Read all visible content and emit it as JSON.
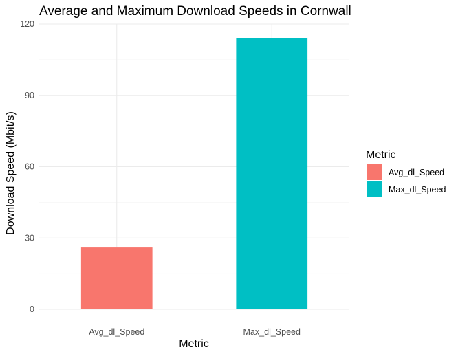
{
  "chart_data": {
    "type": "bar",
    "title": "Average and Maximum Download Speeds in Cornwall",
    "xlabel": "Metric",
    "ylabel": "Download Speed (Mbit/s)",
    "categories": [
      "Avg_dl_Speed",
      "Max_dl_Speed"
    ],
    "values": [
      26,
      114.2
    ],
    "colors": [
      "#F8766D",
      "#00BFC4"
    ],
    "ylim": [
      0,
      120
    ],
    "yticks": [
      0,
      30,
      60,
      90,
      120
    ],
    "grid": true,
    "legend": {
      "title": "Metric",
      "position": "right",
      "items": [
        {
          "label": "Avg_dl_Speed",
          "color": "#F8766D"
        },
        {
          "label": "Max_dl_Speed",
          "color": "#00BFC4"
        }
      ]
    }
  }
}
